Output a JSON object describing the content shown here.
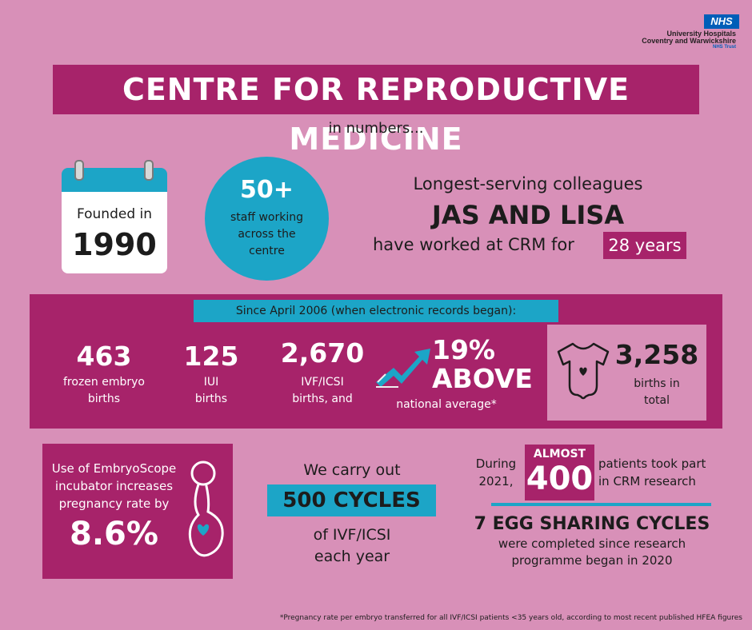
{
  "logo": {
    "badge": "NHS",
    "line1": "University Hospitals",
    "line2": "Coventry and Warwickshire",
    "line3": "NHS Trust"
  },
  "title": "CENTRE FOR REPRODUCTIVE MEDICINE",
  "subtitle": "in numbers...",
  "founded": {
    "label": "Founded in",
    "year": "1990"
  },
  "staff": {
    "number": "50+",
    "line1": "staff working",
    "line2": "across the",
    "line3": "centre"
  },
  "longest": {
    "line1": "Longest-serving colleagues",
    "names": "JAS AND LISA",
    "line3": "have worked at CRM for",
    "highlight": "28 years"
  },
  "since": "Since April 2006 (when electronic records began):",
  "stats": {
    "frozen": {
      "number": "463",
      "line1": "frozen embryo",
      "line2": "births"
    },
    "iui": {
      "number": "125",
      "line1": "IUI",
      "line2": "births"
    },
    "ivf": {
      "number": "2,670",
      "line1": "IVF/ICSI",
      "line2": "births, and"
    },
    "above": {
      "number": "19%",
      "word": "ABOVE",
      "label": "national average*"
    },
    "total": {
      "number": "3,258",
      "line1": "births in",
      "line2": "total"
    }
  },
  "embryoscope": {
    "line1": "Use of EmbryoScope",
    "line2": "incubator increases",
    "line3": "pregnancy rate by",
    "number": "8.6%"
  },
  "cycles": {
    "line1": "We carry out",
    "highlight": "500 CYCLES",
    "line2": "of IVF/ICSI",
    "line3": "each year"
  },
  "research": {
    "during1": "During",
    "during2": "2021,",
    "almost": "ALMOST",
    "number": "400",
    "pat1": "patients took part",
    "pat2": "in CRM research",
    "egg": "7 EGG SHARING CYCLES",
    "done1": "were completed since research",
    "done2": "programme began in 2020"
  },
  "footnote": "*Pregnancy rate per embryo transferred for all IVF/ICSI patients <35 years old, according to most recent published HFEA figures",
  "colors": {
    "background": "#d890b8",
    "magenta": "#a7236a",
    "blue": "#1ca5c7"
  }
}
